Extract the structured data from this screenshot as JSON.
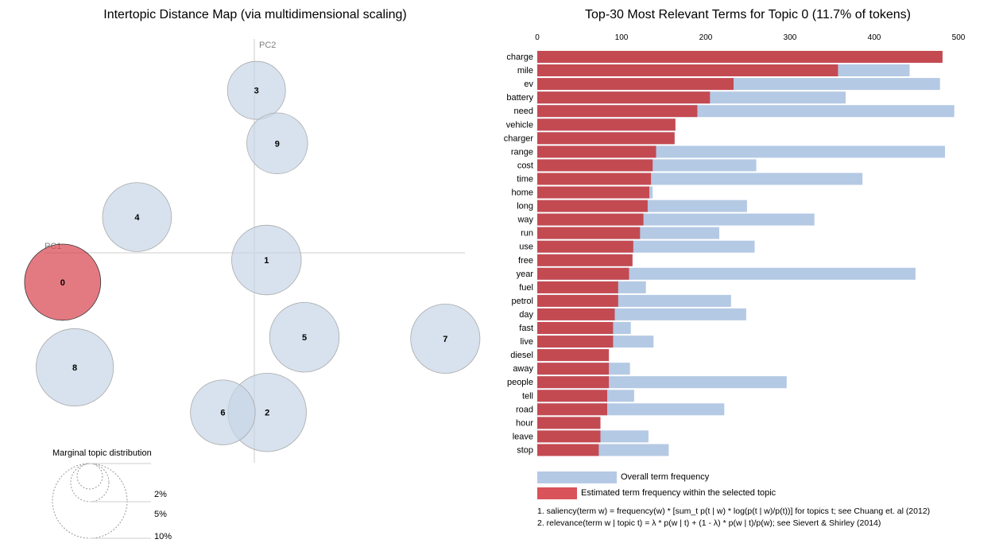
{
  "left_panel": {
    "title": "Intertopic Distance Map (via multidimensional scaling)",
    "axis_pc1": "PC1",
    "axis_pc2": "PC2",
    "marginal_title": "Marginal topic distribution",
    "marginal_labels": [
      "2%",
      "5%",
      "10%"
    ]
  },
  "right_panel": {
    "title": "Top-30 Most Relevant Terms for Topic 0 (11.7% of tokens)",
    "legend_overall": "Overall term frequency",
    "legend_estimated": "Estimated term frequency within the selected topic",
    "note1": "1. saliency(term w) = frequency(w) * [sum_t p(t | w) * log(p(t | w)/p(t))] for topics t; see Chuang et. al (2012)",
    "note2": "2. relevance(term w | topic t) = λ * p(w | t) + (1 - λ) * p(w | t)/p(w); see Sievert & Shirley (2014)"
  },
  "colors": {
    "overall": "#b4c9e4",
    "estimated": "#c44a52",
    "legend_estimated": "#d9535b",
    "bubble": "#c6d6e7",
    "bubble_selected": "#d9414b"
  },
  "chart_data": [
    {
      "type": "scatter",
      "title": "Intertopic Distance Map (via multidimensional scaling)",
      "xlabel": "PC1",
      "ylabel": "PC2",
      "selected_topic": "0",
      "points": [
        {
          "label": "0",
          "pc1": -0.268,
          "pc2": -0.041,
          "share": 11.7
        },
        {
          "label": "1",
          "pc1": 0.017,
          "pc2": -0.01,
          "share": 9.8
        },
        {
          "label": "2",
          "pc1": 0.018,
          "pc2": -0.223,
          "share": 12.4
        },
        {
          "label": "3",
          "pc1": 0.003,
          "pc2": 0.227,
          "share": 6.8
        },
        {
          "label": "4",
          "pc1": -0.164,
          "pc2": 0.05,
          "share": 9.6
        },
        {
          "label": "5",
          "pc1": 0.07,
          "pc2": -0.118,
          "share": 9.8
        },
        {
          "label": "6",
          "pc1": -0.044,
          "pc2": -0.223,
          "share": 8.5
        },
        {
          "label": "7",
          "pc1": 0.267,
          "pc2": -0.12,
          "share": 9.7
        },
        {
          "label": "8",
          "pc1": -0.251,
          "pc2": -0.16,
          "share": 12.1
        },
        {
          "label": "9",
          "pc1": 0.032,
          "pc2": 0.153,
          "share": 7.5
        }
      ]
    },
    {
      "type": "bar",
      "title": "Top-30 Most Relevant Terms for Topic 0 (11.7% of tokens)",
      "xlim": [
        0,
        500
      ],
      "xticks": [
        0,
        100,
        200,
        300,
        400,
        500
      ],
      "categories": [
        "charge",
        "mile",
        "ev",
        "battery",
        "need",
        "vehicle",
        "charger",
        "range",
        "cost",
        "time",
        "home",
        "long",
        "way",
        "run",
        "use",
        "free",
        "year",
        "fuel",
        "petrol",
        "day",
        "fast",
        "live",
        "diesel",
        "away",
        "people",
        "tell",
        "road",
        "hour",
        "leave",
        "stop"
      ],
      "series": [
        {
          "name": "Overall term frequency",
          "values": [
            481,
            442,
            478,
            366,
            495,
            164,
            163,
            484,
            260,
            386,
            137,
            249,
            329,
            216,
            258,
            113,
            449,
            129,
            230,
            248,
            111,
            138,
            85,
            110,
            296,
            115,
            222,
            74,
            132,
            156
          ]
        },
        {
          "name": "Estimated term frequency within the selected topic",
          "values": [
            481,
            357,
            233,
            205,
            190,
            164,
            163,
            141,
            137,
            135,
            133,
            131,
            126,
            122,
            114,
            113,
            109,
            96,
            96,
            92,
            90,
            90,
            85,
            85,
            85,
            83,
            83,
            75,
            75,
            73
          ]
        }
      ]
    }
  ]
}
